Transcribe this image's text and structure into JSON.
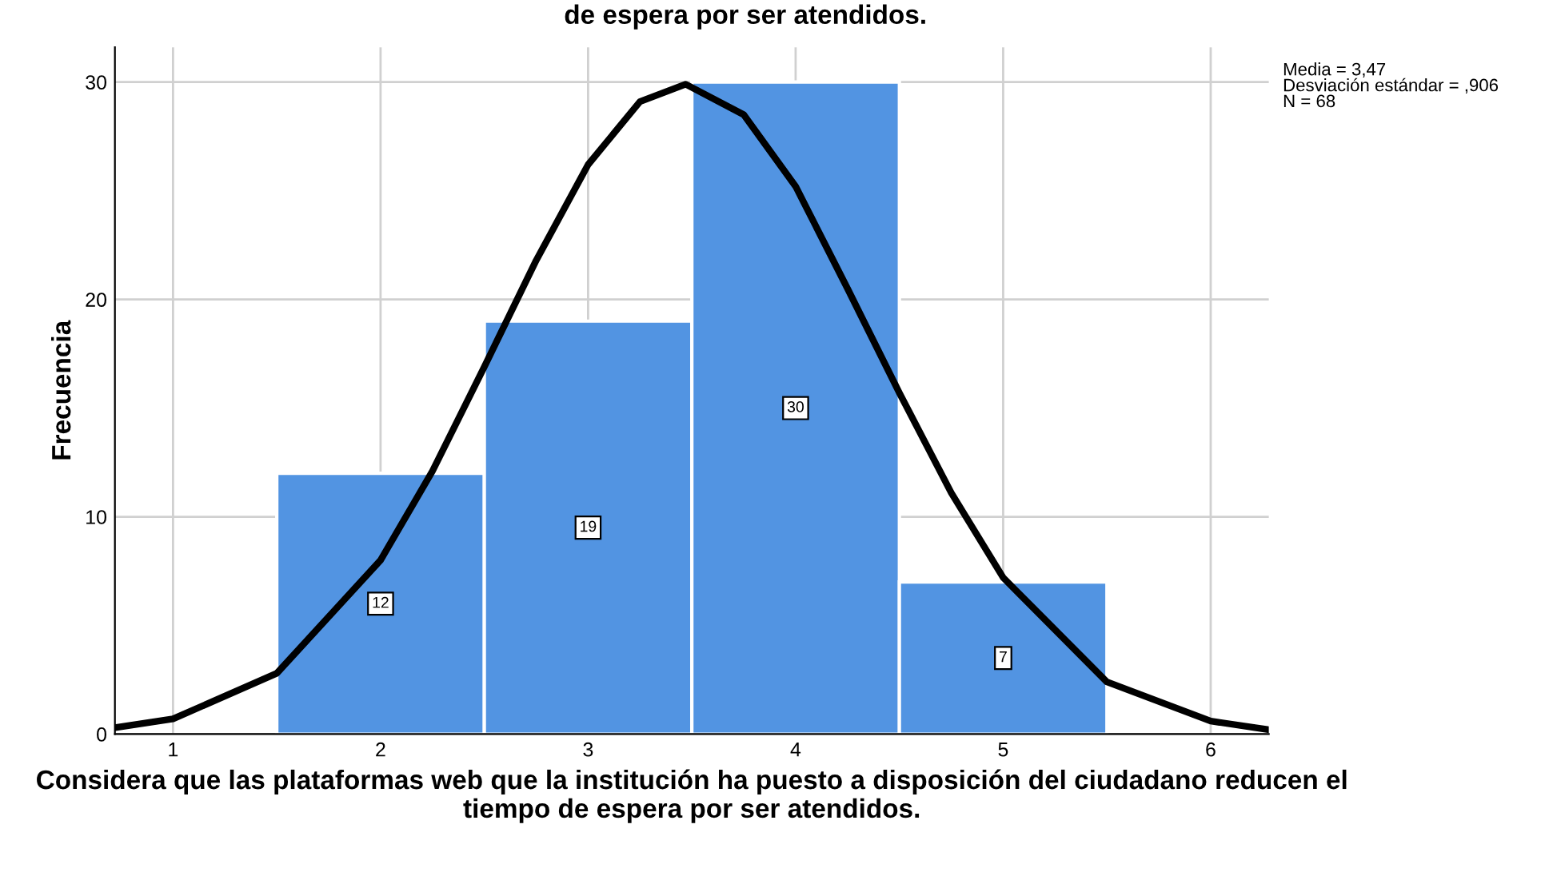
{
  "chart_data": {
    "type": "histogram",
    "title": "de espera por ser atendidos.",
    "xlabel": "Considera que las plataformas web que la institución ha puesto a disposición del ciudadano reducen el tiempo de espera por ser atendidos.",
    "ylabel": "Frecuencia",
    "bins": [
      1.5,
      2.5,
      3.5,
      4.5,
      5.5
    ],
    "values": [
      12,
      19,
      30,
      7
    ],
    "color": "#5294e2",
    "value_labels": [
      "12",
      "19",
      "30",
      "7"
    ],
    "series": [
      {
        "type": "line",
        "color": "#000000",
        "x": [
          0.72,
          1.0,
          1.5,
          2.0,
          2.25,
          2.5,
          2.75,
          3.0,
          3.25,
          3.47,
          3.75,
          4.0,
          4.25,
          4.5,
          4.75,
          5.0,
          5.5,
          6.0,
          6.28
        ],
        "values": [
          0.3,
          0.7,
          2.8,
          8.0,
          12.1,
          16.9,
          21.8,
          26.2,
          29.1,
          29.9,
          28.5,
          25.2,
          20.5,
          15.7,
          11.1,
          7.2,
          2.4,
          0.6,
          0.2
        ]
      }
    ],
    "annotations": [
      "Media = 3,47\nDesviación estándar = ,906\nN = 68"
    ],
    "xlim": [
      0.72,
      6.28
    ],
    "xticks": [
      1,
      2,
      3,
      4,
      5,
      6
    ],
    "ylim": [
      0,
      31.6
    ],
    "yticks": [
      0,
      10,
      20,
      30
    ],
    "grid": true,
    "marker": "none",
    "line_style": "solid"
  }
}
